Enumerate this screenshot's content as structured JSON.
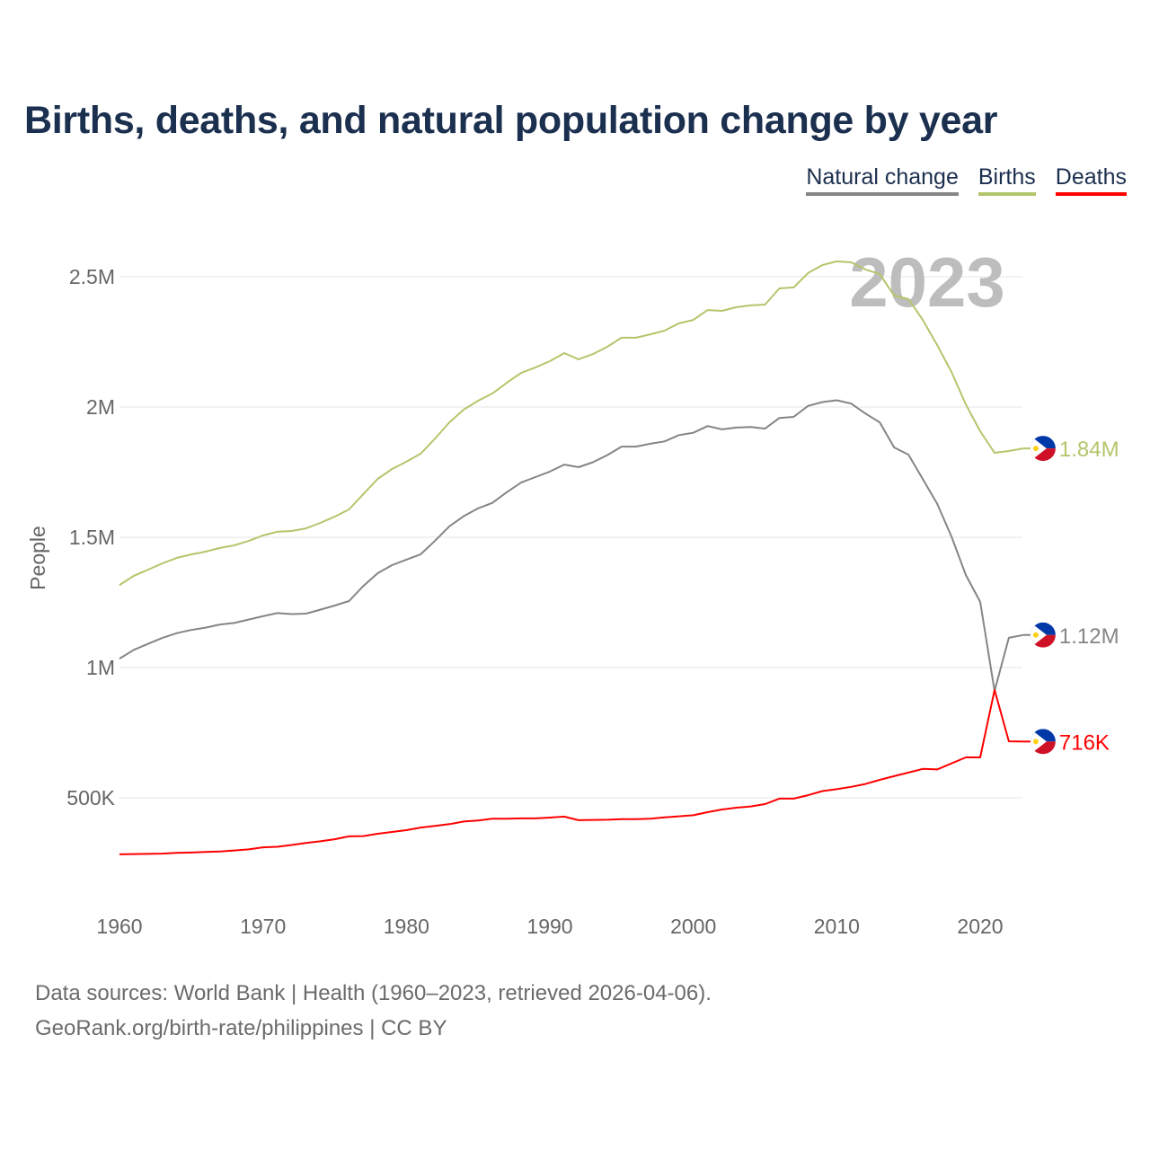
{
  "chart_data": {
    "type": "line",
    "title": "Births, deaths, and natural population change by year",
    "ylabel": "People",
    "xlabel": "",
    "ylim": [
      0,
      2700000
    ],
    "xlim": [
      1960,
      2023
    ],
    "grid": true,
    "legend_placement": "top-right",
    "current_year_label": "2023",
    "x_ticks": [
      1960,
      1970,
      1980,
      1990,
      2000,
      2010,
      2020
    ],
    "x_tick_labels": [
      "1960",
      "1970",
      "1980",
      "1990",
      "2000",
      "2010",
      "2020"
    ],
    "y_ticks": [
      500000,
      1000000,
      1500000,
      2000000,
      2500000
    ],
    "y_tick_labels": [
      "500K",
      "1M",
      "1.5M",
      "2M",
      "2.5M"
    ],
    "x": [
      1960,
      1961,
      1962,
      1963,
      1964,
      1965,
      1966,
      1967,
      1968,
      1969,
      1970,
      1971,
      1972,
      1973,
      1974,
      1975,
      1976,
      1977,
      1978,
      1979,
      1980,
      1981,
      1982,
      1983,
      1984,
      1985,
      1986,
      1987,
      1988,
      1989,
      1990,
      1991,
      1992,
      1993,
      1994,
      1995,
      1996,
      1997,
      1998,
      1999,
      2000,
      2001,
      2002,
      2003,
      2004,
      2005,
      2006,
      2007,
      2008,
      2009,
      2010,
      2011,
      2012,
      2013,
      2014,
      2015,
      2016,
      2017,
      2018,
      2019,
      2020,
      2021,
      2022,
      2023
    ],
    "series": [
      {
        "name": "Natural change",
        "color": "#858585",
        "end_label": "1.12M",
        "values": [
          1034000,
          1068000,
          1091000,
          1114000,
          1132000,
          1144000,
          1153000,
          1165000,
          1171000,
          1184000,
          1197000,
          1209000,
          1205000,
          1207000,
          1222000,
          1238000,
          1255000,
          1313000,
          1362000,
          1393000,
          1414000,
          1435000,
          1487000,
          1542000,
          1581000,
          1611000,
          1632000,
          1673000,
          1710000,
          1731000,
          1752000,
          1779000,
          1769000,
          1788000,
          1815000,
          1848000,
          1848000,
          1859000,
          1868000,
          1892000,
          1901000,
          1927000,
          1914000,
          1921000,
          1923000,
          1917000,
          1958000,
          1962000,
          2004000,
          2019000,
          2026000,
          2013000,
          1975000,
          1941000,
          1845000,
          1817000,
          1723000,
          1629000,
          1502000,
          1355000,
          1252000,
          910000,
          1114000,
          1125000
        ]
      },
      {
        "name": "Births",
        "color": "#b3c66b",
        "end_label": "1.84M",
        "values": [
          1317000,
          1352000,
          1376000,
          1400000,
          1421000,
          1434000,
          1445000,
          1459000,
          1469000,
          1486000,
          1507000,
          1521000,
          1524000,
          1534000,
          1555000,
          1579000,
          1607000,
          1666000,
          1724000,
          1762000,
          1790000,
          1821000,
          1879000,
          1941000,
          1990000,
          2024000,
          2052000,
          2093000,
          2131000,
          2152000,
          2176000,
          2207000,
          2183000,
          2203000,
          2231000,
          2266000,
          2266000,
          2279000,
          2293000,
          2321000,
          2334000,
          2372000,
          2369000,
          2383000,
          2390000,
          2393000,
          2455000,
          2459000,
          2514000,
          2545000,
          2559000,
          2555000,
          2528000,
          2510000,
          2428000,
          2414000,
          2334000,
          2238000,
          2134000,
          2010000,
          1907000,
          1824000,
          1831000,
          1841000
        ]
      },
      {
        "name": "Deaths",
        "color": "#ff0000",
        "end_label": "716K",
        "values": [
          283000,
          284000,
          285000,
          286000,
          289000,
          290000,
          292000,
          294000,
          298000,
          302000,
          310000,
          312000,
          319000,
          327000,
          333000,
          341000,
          352000,
          353000,
          362000,
          369000,
          376000,
          386000,
          392000,
          399000,
          409000,
          413000,
          420000,
          420000,
          421000,
          421000,
          424000,
          428000,
          414000,
          415000,
          416000,
          418000,
          418000,
          420000,
          425000,
          429000,
          433000,
          445000,
          455000,
          462000,
          467000,
          476000,
          497000,
          497000,
          510000,
          526000,
          533000,
          542000,
          553000,
          569000,
          583000,
          597000,
          611000,
          609000,
          632000,
          655000,
          655000,
          914000,
          717000,
          716000
        ]
      }
    ]
  },
  "legend": [
    "Natural change",
    "Births",
    "Deaths"
  ],
  "footer": {
    "line1": "Data sources: World Bank | Health (1960–2023, retrieved 2026-04-06).",
    "line2": "GeoRank.org/birth-rate/philippines | CC BY"
  },
  "flag_icon": "philippines-flag-icon"
}
